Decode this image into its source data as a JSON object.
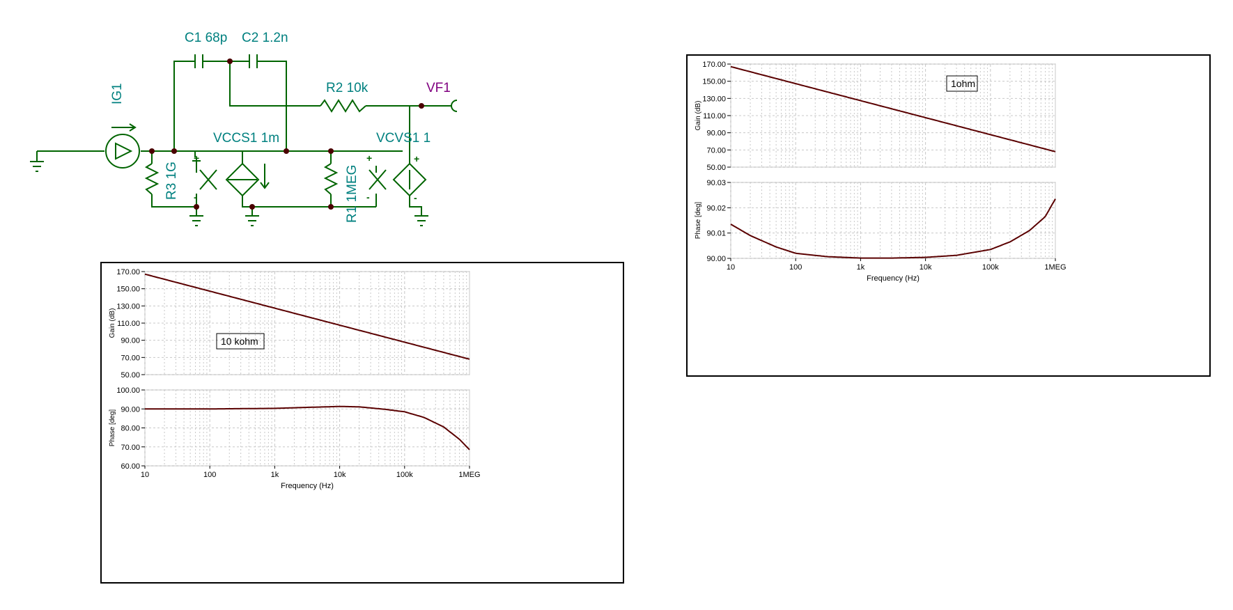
{
  "schematic": {
    "labels": {
      "c1": "C1 68p",
      "c2": "C2 1.2n",
      "ig1": "IG1",
      "r2": "R2 10k",
      "vf1": "VF1",
      "vccs1": "VCCS1 1m",
      "vcvs1": "VCVS1 1",
      "r3": "R3 1G",
      "r1": "R1 1MEG"
    },
    "colors": {
      "wire": "#006400",
      "label": "#00807f",
      "probe": "#800080",
      "node": "#4a0000"
    }
  },
  "chart_data": [
    {
      "type": "line",
      "panel": "10 kohm",
      "annotation": "10 kohm",
      "xlabel": "Frequency (Hz)",
      "xscale": "log",
      "x_ticks": [
        "10",
        "100",
        "1k",
        "10k",
        "100k",
        "1MEG"
      ],
      "gain": {
        "ylabel": "Gain (dB)",
        "ylim": [
          50,
          170
        ],
        "y_ticks": [
          "50.00",
          "70.00",
          "90.00",
          "110.00",
          "130.00",
          "150.00",
          "170.00"
        ],
        "x": [
          10,
          1000000
        ],
        "y": [
          167,
          68
        ]
      },
      "phase": {
        "ylabel": "Phase [deg]",
        "ylim": [
          60,
          100
        ],
        "y_ticks": [
          "60.00",
          "70.00",
          "80.00",
          "90.00",
          "100.00"
        ],
        "x": [
          10,
          100,
          1000,
          3000,
          10000,
          20000,
          50000,
          100000,
          200000,
          400000,
          700000,
          1000000
        ],
        "y": [
          90,
          90,
          90.3,
          90.8,
          91.3,
          91.1,
          89.8,
          88.5,
          85.5,
          80.5,
          74.0,
          68.5
        ]
      },
      "grid": true,
      "color": "#5a0000"
    },
    {
      "type": "line",
      "panel": "1ohm",
      "annotation": "1ohm",
      "xlabel": "Frequency (Hz)",
      "xscale": "log",
      "x_ticks": [
        "10",
        "100",
        "1k",
        "10k",
        "100k",
        "1MEG"
      ],
      "gain": {
        "ylabel": "Gain (dB)",
        "ylim": [
          50,
          170
        ],
        "y_ticks": [
          "50.00",
          "70.00",
          "90.00",
          "110.00",
          "130.00",
          "150.00",
          "170.00"
        ],
        "x": [
          10,
          1000000
        ],
        "y": [
          167,
          68
        ]
      },
      "phase": {
        "ylabel": "Phase [deg]",
        "ylim": [
          90,
          90.03
        ],
        "y_ticks": [
          "90.00",
          "90.01",
          "90.02",
          "90.03"
        ],
        "x": [
          10,
          20,
          50,
          100,
          300,
          1000,
          3000,
          10000,
          30000,
          100000,
          200000,
          400000,
          700000,
          1000000
        ],
        "y": [
          90.0135,
          90.009,
          90.0045,
          90.002,
          90.0007,
          90.0001,
          90.0001,
          90.0004,
          90.0012,
          90.0035,
          90.0065,
          90.011,
          90.0165,
          90.0235
        ]
      },
      "grid": true,
      "color": "#5a0000"
    }
  ]
}
